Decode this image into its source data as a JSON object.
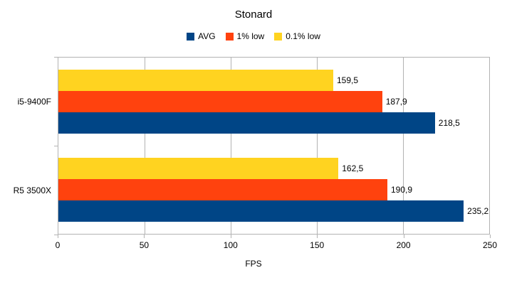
{
  "chart_data": {
    "type": "bar",
    "orientation": "horizontal",
    "title": "Stonard",
    "xlabel": "FPS",
    "xlim": [
      0,
      250
    ],
    "xticks": [
      0,
      50,
      100,
      150,
      200,
      250
    ],
    "grid": true,
    "legend_position": "top",
    "categories": [
      "i5-9400F",
      "R5 3500X"
    ],
    "series": [
      {
        "name": "AVG",
        "color": "#004586",
        "values": [
          218.5,
          235.2
        ],
        "labels": [
          "218,5",
          "235,2"
        ]
      },
      {
        "name": "1% low",
        "color": "#FF420E",
        "values": [
          187.9,
          190.9
        ],
        "labels": [
          "187,9",
          "190,9"
        ]
      },
      {
        "name": "0.1% low",
        "color": "#FFD320",
        "values": [
          159.5,
          162.5
        ],
        "labels": [
          "159,5",
          "162,5"
        ]
      }
    ],
    "row_order_top_to_bottom": [
      "0.1% low",
      "1% low",
      "AVG"
    ],
    "colors": {
      "grid": "#b3b3b3",
      "text": "#000000",
      "background": "#ffffff"
    }
  }
}
